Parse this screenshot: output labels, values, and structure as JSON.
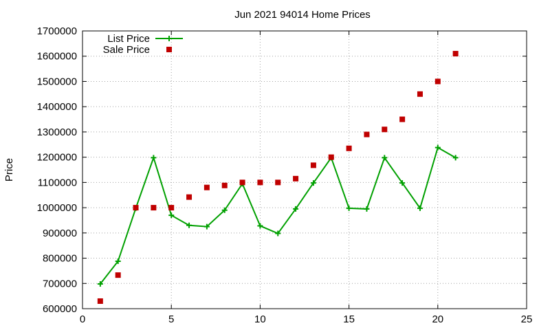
{
  "chart_data": {
    "type": "line",
    "title": "Jun 2021 94014 Home Prices",
    "xlabel": "",
    "ylabel": "Price",
    "xlim": [
      0,
      25
    ],
    "ylim": [
      600000,
      1700000
    ],
    "xticks": [
      0,
      5,
      10,
      15,
      20,
      25
    ],
    "yticks": [
      600000,
      700000,
      800000,
      900000,
      1000000,
      1100000,
      1200000,
      1300000,
      1400000,
      1500000,
      1600000,
      1700000
    ],
    "grid": true,
    "legend_position": "top-left",
    "series": [
      {
        "name": "List Price",
        "style": "line-with-plus-markers",
        "color": "#00a000",
        "x": [
          1,
          2,
          3,
          4,
          5,
          6,
          7,
          8,
          9,
          10,
          11,
          12,
          13,
          14,
          15,
          16,
          17,
          18,
          19,
          20,
          21
        ],
        "y": [
          698000,
          788000,
          998000,
          1198000,
          970000,
          930000,
          925000,
          990000,
          1095000,
          928000,
          898000,
          995000,
          1098000,
          1198000,
          998000,
          995000,
          1198000,
          1098000,
          998000,
          1238000,
          1198000
        ]
      },
      {
        "name": "Sale Price",
        "style": "square-markers",
        "color": "#c00000",
        "x": [
          1,
          2,
          3,
          4,
          5,
          6,
          7,
          8,
          9,
          10,
          11,
          12,
          13,
          14,
          15,
          16,
          17,
          18,
          19,
          20,
          21
        ],
        "y": [
          630000,
          733000,
          1000000,
          1000000,
          1000000,
          1042000,
          1080000,
          1088000,
          1100000,
          1100000,
          1100000,
          1115000,
          1168000,
          1200000,
          1235000,
          1290000,
          1310000,
          1350000,
          1450000,
          1500000,
          1610000
        ]
      }
    ]
  }
}
